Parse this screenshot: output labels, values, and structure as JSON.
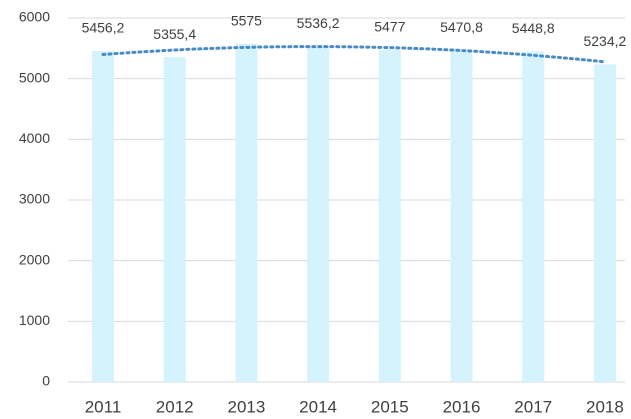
{
  "chart_data": {
    "type": "bar",
    "categories": [
      "2011",
      "2012",
      "2013",
      "2014",
      "2015",
      "2016",
      "2017",
      "2018"
    ],
    "values": [
      5456.2,
      5355.4,
      5575,
      5536.2,
      5477,
      5470.8,
      5448.8,
      5234.2
    ],
    "value_labels": [
      "5456,2",
      "5355,4",
      "5575",
      "5536,2",
      "5477",
      "5470,8",
      "5448,8",
      "5234,2"
    ],
    "color": "#d5f3fc",
    "ylim": [
      0,
      6000
    ],
    "yticks": [
      0,
      1000,
      2000,
      3000,
      4000,
      5000,
      6000
    ],
    "grid": true,
    "trendline": {
      "type": "polynomial",
      "order": 2,
      "color": "#4a8ac6"
    }
  }
}
